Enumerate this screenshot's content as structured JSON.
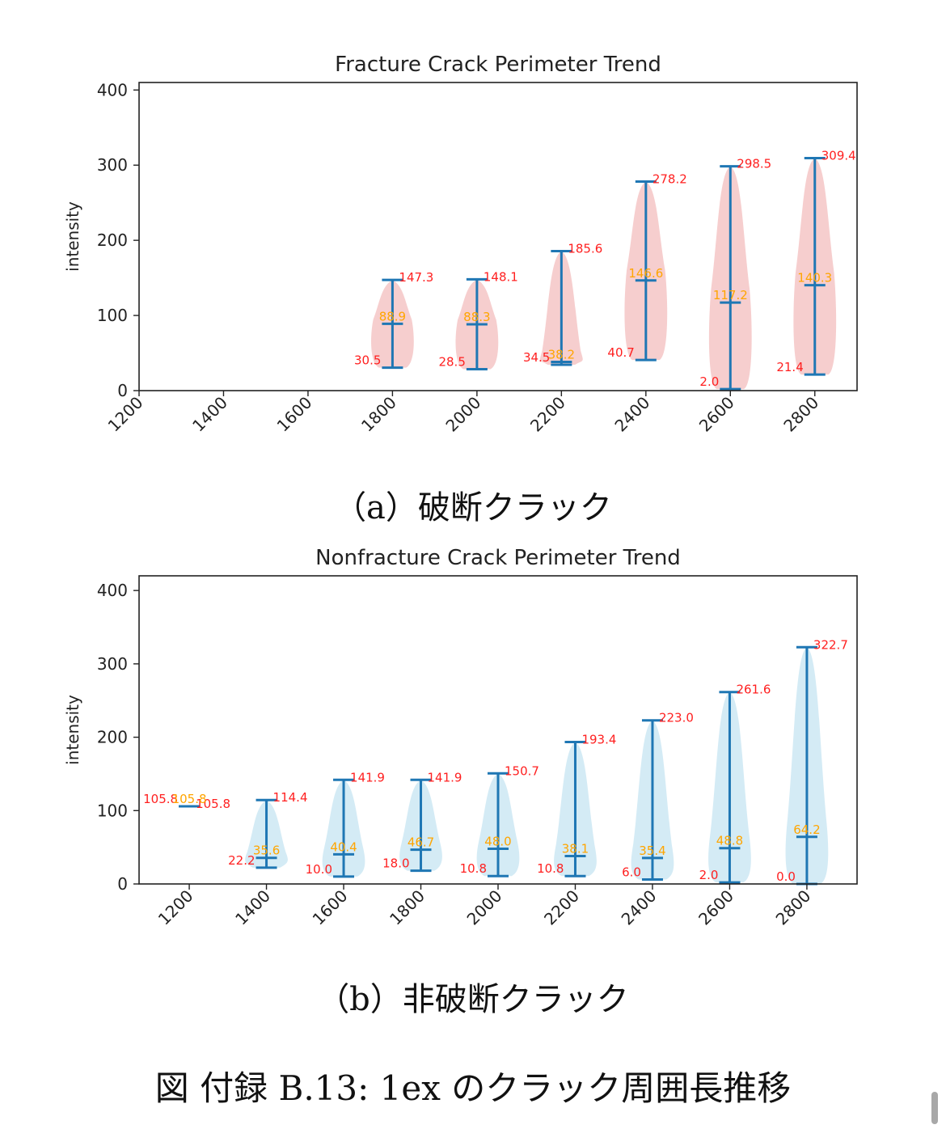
{
  "captions": {
    "a": "（a）破断クラック",
    "b": "（b）非破断クラック",
    "figure": "図 付録 B.13:  1ex のクラック周囲長推移"
  },
  "colors": {
    "box": "#1f77b4",
    "max_min_label": "#ff2020",
    "median_label": "#ffa500",
    "fracture_fill": "#f4c6c6",
    "nonfracture_fill": "#cde8f3"
  },
  "chart_data": [
    {
      "type": "violin",
      "title": "Fracture Crack Perimeter Trend",
      "ylabel": "intensity",
      "xlabel": "",
      "ylim": [
        0,
        410
      ],
      "xlim": [
        1200,
        2900
      ],
      "yticks": [
        0,
        100,
        200,
        300,
        400
      ],
      "xticks": [
        1200,
        1400,
        1600,
        1800,
        2000,
        2200,
        2400,
        2600,
        2800
      ],
      "grid": false,
      "series": [
        {
          "x": 1800,
          "min": 30.5,
          "median": 88.9,
          "max": 147.3,
          "min_label": "30.5",
          "median_label": "88.9",
          "max_label": "147.3"
        },
        {
          "x": 2000,
          "min": 28.5,
          "median": 88.3,
          "max": 148.1,
          "min_label": "28.5",
          "median_label": "88.3",
          "max_label": "148.1"
        },
        {
          "x": 2200,
          "min": 34.5,
          "median": 38.2,
          "max": 185.6,
          "min_label": "34.5",
          "median_label": "38.2",
          "max_label": "185.6"
        },
        {
          "x": 2400,
          "min": 40.7,
          "median": 146.6,
          "max": 278.2,
          "min_label": "40.7",
          "median_label": "146.6",
          "max_label": "278.2"
        },
        {
          "x": 2600,
          "min": 2.0,
          "median": 117.2,
          "max": 298.5,
          "min_label": "2.0",
          "median_label": "117.2",
          "max_label": "298.5"
        },
        {
          "x": 2800,
          "min": 21.4,
          "median": 140.3,
          "max": 309.4,
          "min_label": "21.4",
          "median_label": "140.3",
          "max_label": "309.4"
        }
      ]
    },
    {
      "type": "violin",
      "title": "Nonfracture Crack Perimeter Trend",
      "ylabel": "intensity",
      "xlabel": "",
      "ylim": [
        0,
        420
      ],
      "xlim": [
        1070,
        2930
      ],
      "yticks": [
        0,
        100,
        200,
        300,
        400
      ],
      "xticks": [
        1200,
        1400,
        1600,
        1800,
        2000,
        2200,
        2400,
        2600,
        2800
      ],
      "grid": false,
      "series": [
        {
          "x": 1200,
          "min": 105.8,
          "median": 105.8,
          "max": 105.8,
          "min_label": "105.8",
          "median_label": "105.8",
          "max_label": "105.8"
        },
        {
          "x": 1400,
          "min": 22.2,
          "median": 35.6,
          "max": 114.4,
          "min_label": "22.2",
          "median_label": "35.6",
          "max_label": "114.4"
        },
        {
          "x": 1600,
          "min": 10.0,
          "median": 40.4,
          "max": 141.9,
          "min_label": "10.0",
          "median_label": "40.4",
          "max_label": "141.9"
        },
        {
          "x": 1800,
          "min": 18.0,
          "median": 46.7,
          "max": 141.9,
          "min_label": "18.0",
          "median_label": "46.7",
          "max_label": "141.9"
        },
        {
          "x": 2000,
          "min": 10.8,
          "median": 48.0,
          "max": 150.7,
          "min_label": "10.8",
          "median_label": "48.0",
          "max_label": "150.7"
        },
        {
          "x": 2200,
          "min": 10.8,
          "median": 38.1,
          "max": 193.4,
          "min_label": "10.8",
          "median_label": "38.1",
          "max_label": "193.4"
        },
        {
          "x": 2400,
          "min": 6.0,
          "median": 35.4,
          "max": 223.0,
          "min_label": "6.0",
          "median_label": "35.4",
          "max_label": "223.0"
        },
        {
          "x": 2600,
          "min": 2.0,
          "median": 48.8,
          "max": 261.6,
          "min_label": "2.0",
          "median_label": "48.8",
          "max_label": "261.6"
        },
        {
          "x": 2800,
          "min": 0.0,
          "median": 64.2,
          "max": 322.7,
          "min_label": "0.0",
          "median_label": "64.2",
          "max_label": "322.7"
        }
      ]
    }
  ]
}
